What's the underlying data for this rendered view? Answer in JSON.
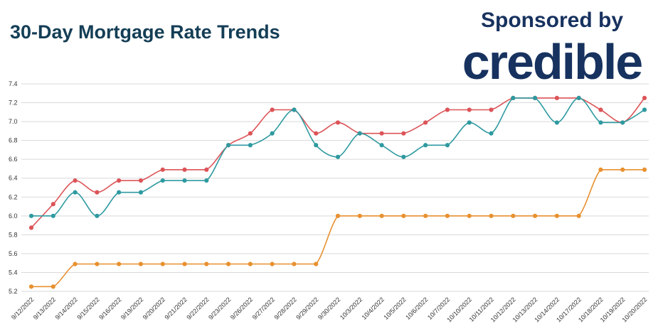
{
  "header": {
    "title": "30-Day Mortgage Rate Trends",
    "sponsor_label": "Sponsored by",
    "sponsor_brand": "credible"
  },
  "colors": {
    "series_red": "#dc5458",
    "series_teal": "#2e9aa0",
    "series_orange": "#e8902f",
    "title": "#143e56",
    "brand": "#17325f",
    "grid": "#d9d9d9"
  },
  "chart_data": {
    "type": "line",
    "title": "",
    "xlabel": "",
    "ylabel": "",
    "ylim": [
      5.2,
      7.4
    ],
    "yticks": [
      5.2,
      5.4,
      5.6,
      5.8,
      6.0,
      6.2,
      6.4,
      6.6,
      6.8,
      7.0,
      7.2,
      7.4
    ],
    "ytick_labels": [
      "5.2",
      "5.4",
      "5.6",
      "5.8",
      "6.0",
      "6.2",
      "6.4",
      "6.6",
      "6.8",
      "7.0",
      "7.2",
      "7.4"
    ],
    "grid": true,
    "legend": "none",
    "categories": [
      "9/12/2022",
      "9/13/2022",
      "9/14/2022",
      "9/15/2022",
      "9/16/2022",
      "9/19/2022",
      "9/20/2022",
      "9/21/2022",
      "9/22/2022",
      "9/23/2022",
      "9/26/2022",
      "9/27/2022",
      "9/28/2022",
      "9/29/2022",
      "9/30/2022",
      "10/3/2022",
      "10/4/2022",
      "10/5/2022",
      "10/6/2022",
      "10/7/2022",
      "10/10/2022",
      "10/11/2022",
      "10/12/2022",
      "10/13/2022",
      "10/14/2022",
      "10/17/2022",
      "10/18/2022",
      "10/19/2022",
      "10/20/2022"
    ],
    "series": [
      {
        "color": "#dc5458",
        "values": [
          5.875,
          6.125,
          6.375,
          6.25,
          6.375,
          6.375,
          6.49,
          6.49,
          6.49,
          6.75,
          6.875,
          7.125,
          7.125,
          6.875,
          6.99,
          6.875,
          6.875,
          6.875,
          6.99,
          7.125,
          7.125,
          7.125,
          7.25,
          7.25,
          7.25,
          7.25,
          7.125,
          6.99,
          7.25
        ]
      },
      {
        "color": "#2e9aa0",
        "values": [
          6.0,
          6.0,
          6.25,
          6.0,
          6.25,
          6.25,
          6.375,
          6.375,
          6.375,
          6.75,
          6.75,
          6.875,
          7.125,
          6.75,
          6.625,
          6.875,
          6.75,
          6.625,
          6.75,
          6.75,
          6.99,
          6.875,
          7.25,
          7.25,
          6.99,
          7.25,
          6.99,
          6.99,
          7.125
        ]
      },
      {
        "color": "#e8902f",
        "values": [
          5.25,
          5.25,
          5.49,
          5.49,
          5.49,
          5.49,
          5.49,
          5.49,
          5.49,
          5.49,
          5.49,
          5.49,
          5.49,
          5.49,
          6.0,
          6.0,
          6.0,
          6.0,
          6.0,
          6.0,
          6.0,
          6.0,
          6.0,
          6.0,
          6.0,
          6.0,
          6.49,
          6.49,
          6.49
        ]
      }
    ]
  }
}
